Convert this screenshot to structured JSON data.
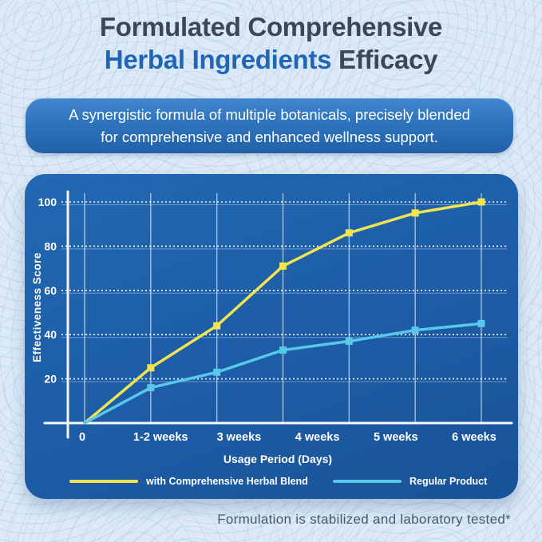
{
  "page": {
    "title_line1": "Formulated Comprehensive",
    "title_line2_highlight": "Herbal Ingredients",
    "title_line2_rest": " Efficacy",
    "subtitle": "A synergistic formula of multiple botanicals, precisely blended for comprehensive and enhanced wellness support.",
    "footnote": "Formulation is stabilized and laboratory tested*"
  },
  "colors": {
    "background": "#dce9f6",
    "title_dark": "#3a4757",
    "title_accent_blue": "#2066b8",
    "banner_blue": "#2e74bd",
    "panel_blue": "#1d5ca6",
    "grid_white": "#ffffff",
    "series_yellow": "#f2e44e",
    "series_cyan": "#58c7e9",
    "footnote_gray": "#47586c"
  },
  "chart_data": {
    "type": "line",
    "xlabel": "Usage Period (Days)",
    "ylabel": "Effectiveness Score",
    "x_tick_labels": [
      "0",
      "1-2 weeks",
      "3 weeks",
      "4 weeks",
      "5 weeks",
      "6 weeks"
    ],
    "yticks": [
      20,
      40,
      60,
      80,
      100
    ],
    "ylim": [
      0,
      100
    ],
    "grid": "both",
    "gridline_style": {
      "horizontal": "dotted",
      "vertical": "solid"
    },
    "legend_position": "bottom",
    "vertical_gridline_count": 7,
    "series": [
      {
        "name": "with Comprehensive Herbal Blend",
        "color": "#f2e44e",
        "marker": "square",
        "values": [
          0,
          25,
          44,
          71,
          86,
          95,
          100
        ]
      },
      {
        "name": "Regular Product",
        "color": "#58c7e9",
        "marker": "square",
        "values": [
          0,
          16,
          23,
          33,
          37,
          42,
          45
        ]
      }
    ]
  }
}
